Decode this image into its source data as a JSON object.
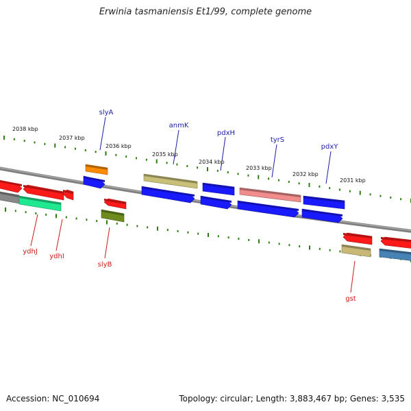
{
  "title": "Erwinia tasmaniensis Et1/99, complete genome",
  "footer": {
    "accession": "Accession: NC_010694",
    "summary": "Topology: circular; Length: 3,883,467 bp; Genes: 3,535"
  },
  "colors": {
    "backbone": "#808080",
    "tick": "#2e7d12",
    "forward_label": "#1a1aa8",
    "reverse_label": "#cc1a1a"
  },
  "kbp_labels": [
    "2038 kbp",
    "2037 kbp",
    "2036 kbp",
    "2035 kbp",
    "2034 kbp",
    "2033 kbp",
    "2032 kbp",
    "2031 kbp"
  ],
  "gene_labels": {
    "forward": [
      "slyA",
      "anmK",
      "pdxH",
      "tyrS",
      "pdxY"
    ],
    "reverse": [
      "ydhJ",
      "ydhI",
      "slyB",
      "gst"
    ]
  },
  "features": [
    {
      "color": "#ff1a1a"
    },
    {
      "color": "#ff1a1a"
    },
    {
      "color": "#ff1a1a"
    },
    {
      "color": "#ff8c00"
    },
    {
      "color": "#c8c078"
    },
    {
      "color": "#1a1aff"
    },
    {
      "color": "#f08c8c"
    },
    {
      "color": "#1a1aff"
    },
    {
      "color": "#ff1a1a"
    },
    {
      "color": "#ff1a1a"
    },
    {
      "color": "#1a1aff"
    },
    {
      "color": "#1a1aff"
    },
    {
      "color": "#1a1aff"
    },
    {
      "color": "#1a1aff"
    },
    {
      "color": "#1a1aff"
    },
    {
      "color": "#888888"
    },
    {
      "color": "#20e890"
    },
    {
      "color": "#ff1a1a"
    },
    {
      "color": "#6e8c1e"
    },
    {
      "color": "#c8b878"
    },
    {
      "color": "#4682b4"
    }
  ]
}
